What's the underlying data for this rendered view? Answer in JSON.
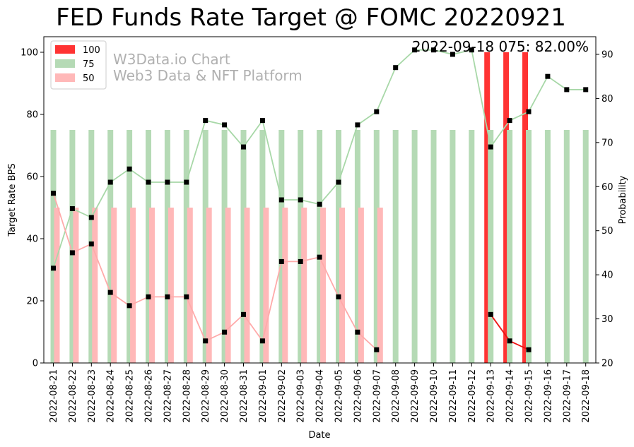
{
  "chart_data": {
    "type": "bar",
    "title": "FED Funds Rate Target @ FOMC 20220921",
    "xlabel": "Date",
    "ylabel": "Target Rate BPS",
    "ylabel_right": "Probability",
    "ylim": [
      0,
      105
    ],
    "ylim_right": [
      20,
      94
    ],
    "yticks": [
      0,
      20,
      40,
      60,
      80,
      100
    ],
    "yticks_right": [
      20,
      30,
      40,
      50,
      60,
      70,
      80,
      90
    ],
    "legend_position": "top-left",
    "annotation": "2022-09-18 075: 82.00%",
    "watermark": [
      "W3Data.io Chart",
      "Web3 Data & NFT Platform"
    ],
    "categories": [
      "2022-08-21",
      "2022-08-22",
      "2022-08-23",
      "2022-08-24",
      "2022-08-25",
      "2022-08-26",
      "2022-08-27",
      "2022-08-28",
      "2022-08-29",
      "2022-08-30",
      "2022-08-31",
      "2022-09-01",
      "2022-09-02",
      "2022-09-03",
      "2022-09-04",
      "2022-09-05",
      "2022-09-06",
      "2022-09-07",
      "2022-09-08",
      "2022-09-09",
      "2022-09-10",
      "2022-09-11",
      "2022-09-12",
      "2022-09-13",
      "2022-09-14",
      "2022-09-15",
      "2022-09-16",
      "2022-09-17",
      "2022-09-18"
    ],
    "series": [
      {
        "name": "100",
        "color": "#ff3333",
        "bar_values": [
          null,
          null,
          null,
          null,
          null,
          null,
          null,
          null,
          null,
          null,
          null,
          null,
          null,
          null,
          null,
          null,
          null,
          null,
          null,
          null,
          null,
          null,
          null,
          100,
          100,
          100,
          null,
          null,
          null
        ],
        "probability": [
          null,
          null,
          null,
          null,
          null,
          null,
          null,
          null,
          null,
          null,
          null,
          null,
          null,
          null,
          null,
          null,
          null,
          null,
          null,
          null,
          null,
          null,
          null,
          31,
          25,
          23,
          null,
          null,
          null
        ],
        "line_color": "#ee1111"
      },
      {
        "name": "75",
        "color": "#b5dab5",
        "bar_values": [
          75,
          75,
          75,
          75,
          75,
          75,
          75,
          75,
          75,
          75,
          75,
          75,
          75,
          75,
          75,
          75,
          75,
          75,
          75,
          75,
          75,
          75,
          75,
          75,
          75,
          75,
          75,
          75,
          75
        ],
        "probability": [
          41.5,
          55,
          53,
          61,
          64,
          61,
          61,
          61,
          75,
          74,
          69,
          75,
          57,
          57,
          56,
          61,
          74,
          77,
          87,
          91,
          91,
          90,
          91,
          69,
          75,
          77,
          85,
          82,
          82
        ],
        "line_color": "#a8d8a8"
      },
      {
        "name": "50",
        "color": "#ffb8b8",
        "bar_values": [
          50,
          50,
          50,
          50,
          50,
          50,
          50,
          50,
          50,
          50,
          50,
          50,
          50,
          50,
          50,
          50,
          50,
          50,
          null,
          null,
          null,
          null,
          null,
          null,
          null,
          null,
          null,
          null,
          null
        ],
        "probability": [
          58.5,
          45,
          47,
          36,
          33,
          35,
          35,
          35,
          25,
          27,
          31,
          25,
          43,
          43,
          44,
          35,
          27,
          23,
          null,
          null,
          null,
          null,
          null,
          null,
          null,
          null,
          null,
          null,
          null
        ],
        "line_color": "#ffaaaa"
      }
    ]
  }
}
